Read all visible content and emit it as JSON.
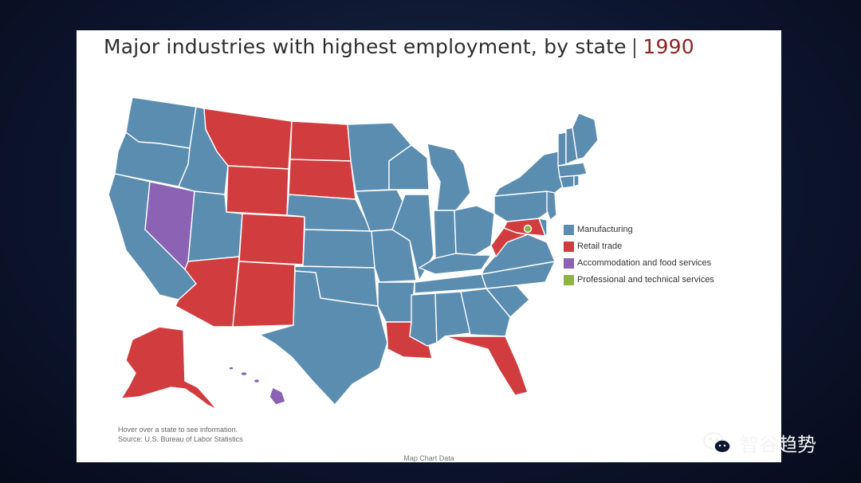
{
  "title": {
    "main": "Major industries with highest employment, by state",
    "separator": "|",
    "year": "1990"
  },
  "legend": [
    {
      "label": "Manufacturing",
      "color": "#5b8db1"
    },
    {
      "label": "Retail trade",
      "color": "#d13d3f"
    },
    {
      "label": "Accommodation and food services",
      "color": "#8b62b4"
    },
    {
      "label": "Professional and technical services",
      "color": "#8db443"
    }
  ],
  "note": {
    "line1": "Hover over a state to see information.",
    "line2": "Source: U.S. Bureau of Labor Statistics"
  },
  "footer": "Map Chart Data",
  "watermark": {
    "text": "智谷趋势",
    "icon": "wechat-icon"
  },
  "colors": {
    "manufacturing": "#5b8db1",
    "retail": "#d13d3f",
    "accommodation": "#8b62b4",
    "professional": "#8db443"
  },
  "map_data": {
    "year": "1990",
    "states": {
      "WA": "Manufacturing",
      "OR": "Manufacturing",
      "CA": "Manufacturing",
      "NV": "Accommodation and food services",
      "ID": "Manufacturing",
      "UT": "Manufacturing",
      "MT": "Retail trade",
      "WY": "Retail trade",
      "CO": "Retail trade",
      "AZ": "Retail trade",
      "NM": "Retail trade",
      "ND": "Retail trade",
      "SD": "Retail trade",
      "NE": "Manufacturing",
      "KS": "Manufacturing",
      "OK": "Manufacturing",
      "TX": "Manufacturing",
      "MN": "Manufacturing",
      "IA": "Manufacturing",
      "MO": "Manufacturing",
      "AR": "Manufacturing",
      "LA": "Retail trade",
      "WI": "Manufacturing",
      "IL": "Manufacturing",
      "MI": "Manufacturing",
      "IN": "Manufacturing",
      "OH": "Manufacturing",
      "KY": "Manufacturing",
      "TN": "Manufacturing",
      "MS": "Manufacturing",
      "AL": "Manufacturing",
      "GA": "Manufacturing",
      "FL": "Retail trade",
      "SC": "Manufacturing",
      "NC": "Manufacturing",
      "VA": "Manufacturing",
      "WV": "Retail trade",
      "MD": "Retail trade",
      "DE": "Manufacturing",
      "DC": "Professional and technical services",
      "PA": "Manufacturing",
      "NY": "Manufacturing",
      "NJ": "Manufacturing",
      "CT": "Manufacturing",
      "RI": "Manufacturing",
      "MA": "Manufacturing",
      "VT": "Manufacturing",
      "NH": "Manufacturing",
      "ME": "Manufacturing",
      "AK": "Retail trade",
      "HI": "Accommodation and food services"
    }
  }
}
